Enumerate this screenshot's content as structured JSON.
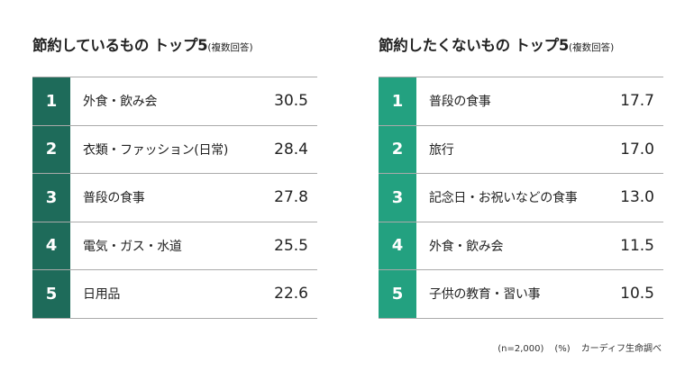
{
  "colors": {
    "left_rank_bg": "#1e6b5a",
    "right_rank_bg": "#23a180",
    "rule": "#aaaaaa"
  },
  "chart_data": [
    {
      "type": "table",
      "title": "節約しているもの トップ5",
      "title_note": "(複数回答)",
      "rows": [
        {
          "rank": "1",
          "item": "外食・飲み会",
          "value": "30.5"
        },
        {
          "rank": "2",
          "item": "衣類・ファッション(日常)",
          "value": "28.4"
        },
        {
          "rank": "3",
          "item": "普段の食事",
          "value": "27.8"
        },
        {
          "rank": "4",
          "item": "電気・ガス・水道",
          "value": "25.5"
        },
        {
          "rank": "5",
          "item": "日用品",
          "value": "22.6"
        }
      ]
    },
    {
      "type": "table",
      "title": "節約したくないもの トップ5",
      "title_note": "(複数回答)",
      "rows": [
        {
          "rank": "1",
          "item": "普段の食事",
          "value": "17.7"
        },
        {
          "rank": "2",
          "item": "旅行",
          "value": "17.0"
        },
        {
          "rank": "3",
          "item": "記念日・お祝いなどの食事",
          "value": "13.0"
        },
        {
          "rank": "4",
          "item": "外食・飲み会",
          "value": "11.5"
        },
        {
          "rank": "5",
          "item": "子供の教育・習い事",
          "value": "10.5"
        }
      ]
    }
  ],
  "footer": {
    "sample": "(n=2,000)",
    "unit": "(%)",
    "source": "カーディフ生命調べ"
  }
}
